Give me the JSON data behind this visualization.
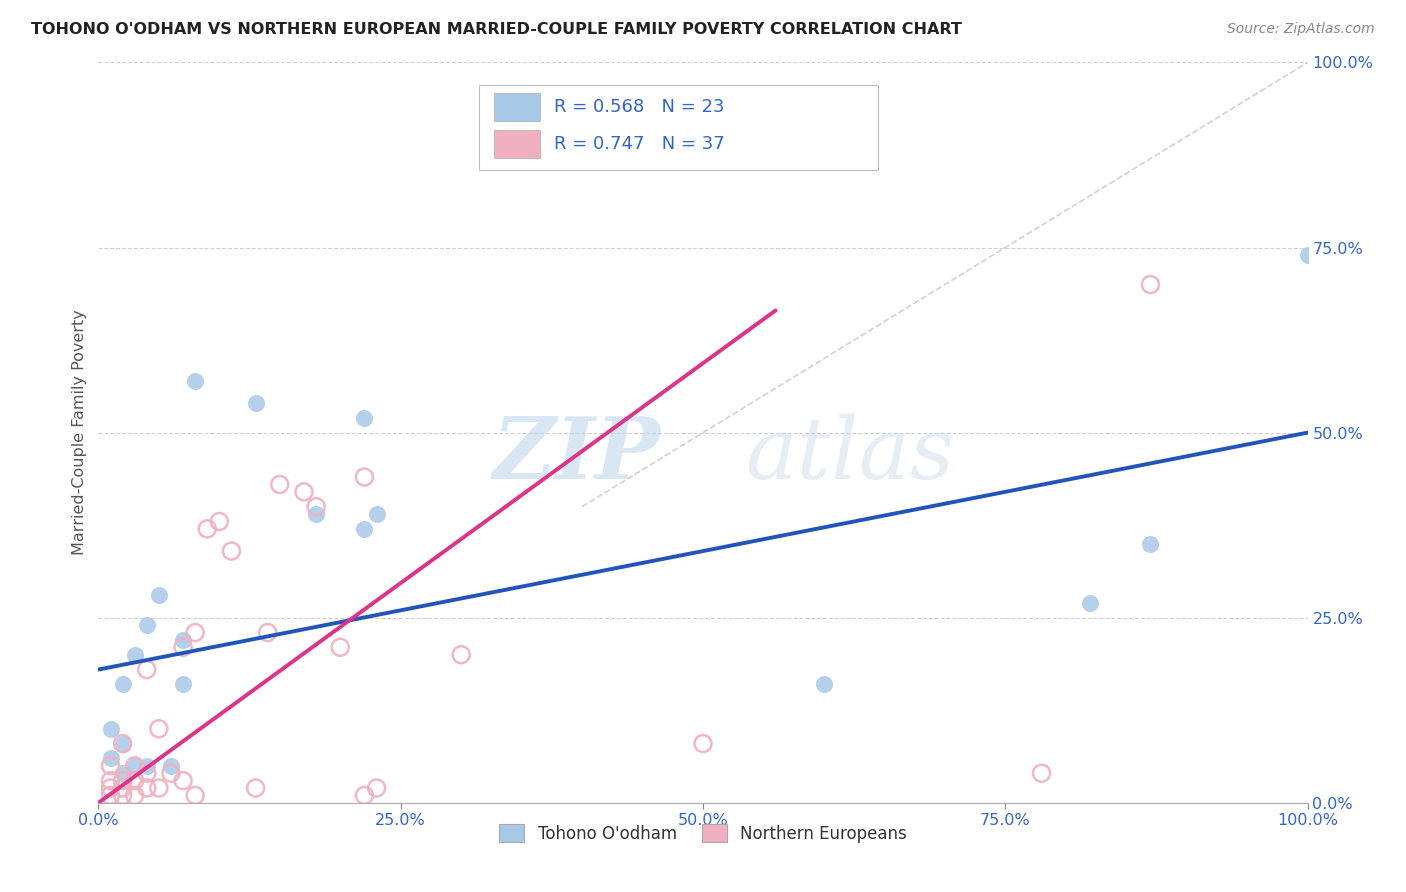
{
  "title": "TOHONO O'ODHAM VS NORTHERN EUROPEAN MARRIED-COUPLE FAMILY POVERTY CORRELATION CHART",
  "source": "Source: ZipAtlas.com",
  "ylabel": "Married-Couple Family Poverty",
  "watermark_zip": "ZIP",
  "watermark_atlas": "atlas",
  "blue_R": "0.568",
  "blue_N": "23",
  "pink_R": "0.747",
  "pink_N": "37",
  "blue_color": "#a8c8e8",
  "pink_color": "#f0b0c0",
  "blue_line_color": "#2255bb",
  "pink_line_color": "#dd3388",
  "gray_line_color": "#cccccc",
  "xlim": [
    0,
    1.0
  ],
  "ylim": [
    0,
    1.0
  ],
  "xticks": [
    0,
    0.25,
    0.5,
    0.75,
    1.0
  ],
  "yticks": [
    0,
    0.25,
    0.5,
    0.75,
    1.0
  ],
  "xtick_labels": [
    "0.0%",
    "25.0%",
    "50.0%",
    "75.0%",
    "100.0%"
  ],
  "ytick_labels": [
    "0.0%",
    "25.0%",
    "50.0%",
    "75.0%",
    "100.0%"
  ],
  "blue_points_x": [
    0.01,
    0.01,
    0.02,
    0.02,
    0.02,
    0.03,
    0.03,
    0.04,
    0.04,
    0.05,
    0.06,
    0.07,
    0.07,
    0.08,
    0.13,
    0.18,
    0.22,
    0.22,
    0.23,
    0.6,
    0.82,
    0.87,
    1.0
  ],
  "blue_points_y": [
    0.06,
    0.1,
    0.04,
    0.08,
    0.16,
    0.05,
    0.2,
    0.05,
    0.24,
    0.28,
    0.05,
    0.16,
    0.22,
    0.57,
    0.54,
    0.39,
    0.37,
    0.52,
    0.39,
    0.16,
    0.27,
    0.35,
    0.74
  ],
  "pink_points_x": [
    0.01,
    0.01,
    0.01,
    0.01,
    0.02,
    0.02,
    0.02,
    0.02,
    0.03,
    0.03,
    0.03,
    0.04,
    0.04,
    0.04,
    0.05,
    0.05,
    0.06,
    0.07,
    0.07,
    0.08,
    0.08,
    0.09,
    0.1,
    0.11,
    0.13,
    0.14,
    0.15,
    0.17,
    0.18,
    0.2,
    0.22,
    0.22,
    0.23,
    0.3,
    0.5,
    0.78,
    0.87
  ],
  "pink_points_y": [
    0.01,
    0.02,
    0.03,
    0.05,
    0.01,
    0.02,
    0.03,
    0.08,
    0.01,
    0.03,
    0.05,
    0.02,
    0.04,
    0.18,
    0.02,
    0.1,
    0.04,
    0.03,
    0.21,
    0.01,
    0.23,
    0.37,
    0.38,
    0.34,
    0.02,
    0.23,
    0.43,
    0.42,
    0.4,
    0.21,
    0.44,
    0.01,
    0.02,
    0.2,
    0.08,
    0.04,
    0.7
  ],
  "blue_trend_x": [
    0.0,
    1.0
  ],
  "blue_trend_y": [
    0.18,
    0.5
  ],
  "pink_trend_x": [
    0.0,
    0.56
  ],
  "pink_trend_y": [
    0.0,
    0.665
  ],
  "diag_line_x": [
    0.4,
    1.0
  ],
  "diag_line_y": [
    0.4,
    1.0
  ]
}
